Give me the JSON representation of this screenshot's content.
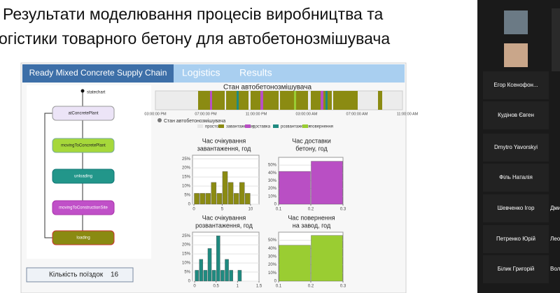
{
  "slide": {
    "title_lines": [
      "Результати моделювання процесів виробництва та",
      "огістики товарного бетону для автобетонозмішувача"
    ],
    "tabs": [
      "Ready Mixed Concrete Supply Chain",
      "Logistics",
      "Results"
    ],
    "statechart_label": "statechart",
    "states": [
      "atConcretePlant",
      "movingToConcretePlant",
      "unloading",
      "movingToConstructionSite",
      "loading"
    ],
    "trips": {
      "label": "Кількість поїздок",
      "value": 16
    },
    "timeline": {
      "title": "Стан автобетонозмішувача",
      "xticks": [
        "03:00:00 PM",
        "07:00:00 PM",
        "11:00:00 PM",
        "03:00:00 AM",
        "07:00:00 AM",
        "11:00:00 AM"
      ],
      "legend_title": "Стан автобетонозмішувача",
      "legend": [
        {
          "name": "простої",
          "color": "#e6e6e6"
        },
        {
          "name": "завантаження",
          "color": "#8b8b12"
        },
        {
          "name": "доставка",
          "color": "#b94fc4"
        },
        {
          "name": "розвантаження",
          "color": "#1f8a80"
        },
        {
          "name": "повернення",
          "color": "#9acd32"
        }
      ]
    },
    "histograms": [
      {
        "title_lines": [
          "Час очікування",
          "завантаження, год"
        ],
        "color": "#8b8b12",
        "bins": [
          0,
          1,
          2,
          3,
          4,
          5,
          6,
          7,
          8,
          9,
          10
        ],
        "values": [
          6,
          6,
          6,
          12,
          6,
          18,
          12,
          6,
          12,
          6
        ],
        "xlim": [
          -0.25,
          11.5
        ],
        "xticks": [
          0,
          5,
          10
        ],
        "ylim": [
          0,
          27
        ],
        "yticks": [
          0,
          {
            "value": 5,
            "label": "5%"
          },
          {
            "value": 10,
            "label": "10%"
          },
          {
            "value": 15,
            "label": "15%"
          },
          {
            "value": 20,
            "label": "20%"
          },
          {
            "value": 25,
            "label": "25%"
          }
        ]
      },
      {
        "title_lines": [
          "Час доставки",
          "бетону, год"
        ],
        "color": "#b94fc4",
        "bins": [
          0.1,
          0.2,
          0.3
        ],
        "values": [
          42,
          55
        ],
        "xlim": [
          0.1,
          0.3
        ],
        "xticks": [
          0.1,
          0.2,
          0.3
        ],
        "ylim": [
          0,
          60
        ],
        "yticks": [
          0,
          {
            "value": 10,
            "label": "10%"
          },
          {
            "value": 20,
            "label": "20%"
          },
          {
            "value": 30,
            "label": "30%"
          },
          {
            "value": 40,
            "label": "40%"
          },
          {
            "value": 50,
            "label": "50%"
          }
        ]
      },
      {
        "title_lines": [
          "Час очікування",
          "розвантаження, год"
        ],
        "color": "#1f8a80",
        "bins": [
          0,
          0.1,
          0.2,
          0.3,
          0.4,
          0.5,
          0.6,
          0.7,
          0.8,
          0.9,
          1.0,
          1.1
        ],
        "values": [
          6,
          12,
          6,
          18,
          6,
          25,
          6,
          12,
          6,
          0,
          6
        ],
        "xlim": [
          -0.05,
          1.5
        ],
        "xticks": [
          0,
          0.5,
          1,
          1.5
        ],
        "ylim": [
          0,
          27
        ],
        "yticks": [
          0,
          {
            "value": 5,
            "label": "5%"
          },
          {
            "value": 10,
            "label": "10%"
          },
          {
            "value": 15,
            "label": "15%"
          },
          {
            "value": 20,
            "label": "20%"
          },
          {
            "value": 25,
            "label": "25%"
          }
        ]
      },
      {
        "title_lines": [
          "Час повернення",
          "на завод, год"
        ],
        "color": "#9acd32",
        "bins": [
          0.1,
          0.2,
          0.3
        ],
        "values": [
          44,
          56
        ],
        "xlim": [
          0.1,
          0.3
        ],
        "xticks": [
          0.1,
          0.2,
          0.3
        ],
        "ylim": [
          0,
          60
        ],
        "yticks": [
          0,
          {
            "value": 10,
            "label": "10%"
          },
          {
            "value": 20,
            "label": "20%"
          },
          {
            "value": 30,
            "label": "30%"
          },
          {
            "value": 40,
            "label": "40%"
          },
          {
            "value": 50,
            "label": "50%"
          }
        ]
      }
    ]
  },
  "participants": [
    "Егор Ксенофон...",
    "Кудінов Євген",
    "Dmytro Yavorskyi",
    "Філь Наталія",
    "Шевченко Ігор",
    "Петренко Юрій",
    "Білик Григорій"
  ],
  "partial_names": [
    "Дми",
    "Лео",
    "Вол"
  ]
}
